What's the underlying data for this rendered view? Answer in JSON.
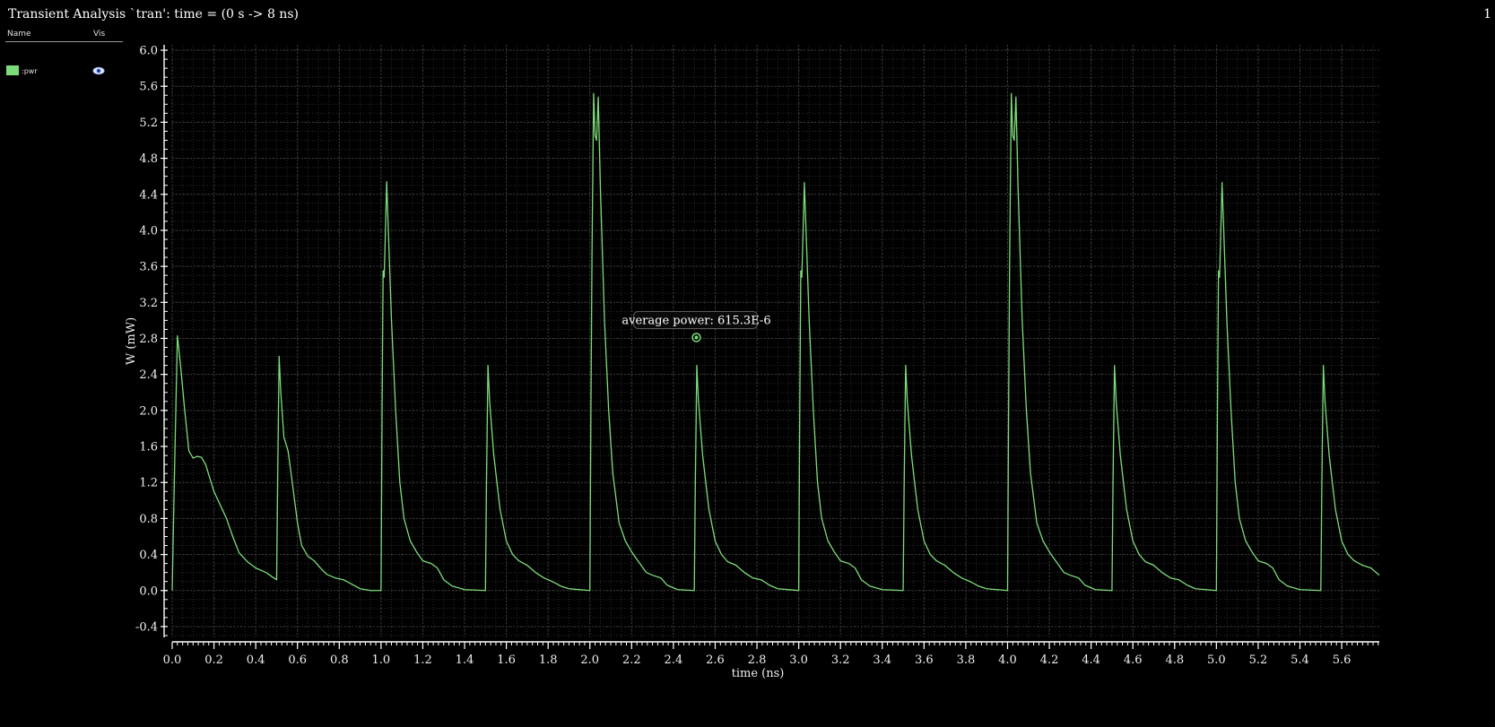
{
  "window": {
    "title": "Transient Analysis `tran': time = (0 s -> 8 ns)",
    "page_number": "1"
  },
  "legend": {
    "name_header": "Name",
    "vis_header": "Vis",
    "items": [
      {
        "label": ":pwr",
        "color": "#7ddc7a",
        "vis_icon": "eye-icon"
      }
    ]
  },
  "colors": {
    "background": "#000000",
    "series": "#7ddc7a",
    "grid": "#3a3a3a",
    "axis": "#ffffff"
  },
  "chart_data": {
    "type": "line",
    "xlabel": "time (ns)",
    "ylabel": "W (mW)",
    "xlim": [
      0,
      5.78
    ],
    "ylim": [
      -0.52,
      6.06
    ],
    "x_ticks": [
      0.0,
      0.2,
      0.4,
      0.6,
      0.8,
      1.0,
      1.2,
      1.4,
      1.6,
      1.8,
      2.0,
      2.2,
      2.4,
      2.6,
      2.8,
      3.0,
      3.2,
      3.4,
      3.6,
      3.8,
      4.0,
      4.2,
      4.4,
      4.6,
      4.8,
      5.0,
      5.2,
      5.4,
      5.6
    ],
    "x_tick_labels": [
      "0.0",
      "0.2",
      "0.4",
      "0.6",
      "0.8",
      "1.0",
      "1.2",
      "1.4",
      "1.6",
      "1.8",
      "2.0",
      "2.2",
      "2.4",
      "2.6",
      "2.8",
      "3.0",
      "3.2",
      "3.4",
      "3.6",
      "3.8",
      "4.0",
      "4.2",
      "4.4",
      "4.6",
      "4.8",
      "5.0",
      "5.2",
      "5.4",
      "5.6"
    ],
    "y_ticks": [
      -0.4,
      0.0,
      0.4,
      0.8,
      1.2,
      1.6,
      2.0,
      2.4,
      2.8,
      3.2,
      3.6,
      4.0,
      4.4,
      4.8,
      5.2,
      5.6,
      6.0
    ],
    "y_tick_labels": [
      "-0.4",
      "0.0",
      "0.4",
      "0.8",
      "1.2",
      "1.6",
      "2.0",
      "2.4",
      "2.8",
      "3.2",
      "3.6",
      "4.0",
      "4.4",
      "4.8",
      "5.2",
      "5.6",
      "6.0"
    ],
    "grid": true,
    "legend_position": "left-panel",
    "series": [
      {
        "name": ":pwr",
        "color": "#7ddc7a",
        "points": [
          [
            0.0,
            0.0
          ],
          [
            0.01,
            1.2
          ],
          [
            0.025,
            2.83
          ],
          [
            0.04,
            2.5
          ],
          [
            0.06,
            2.0
          ],
          [
            0.08,
            1.55
          ],
          [
            0.1,
            1.47
          ],
          [
            0.12,
            1.49
          ],
          [
            0.14,
            1.48
          ],
          [
            0.16,
            1.4
          ],
          [
            0.18,
            1.25
          ],
          [
            0.2,
            1.1
          ],
          [
            0.23,
            0.95
          ],
          [
            0.26,
            0.8
          ],
          [
            0.29,
            0.6
          ],
          [
            0.32,
            0.42
          ],
          [
            0.36,
            0.32
          ],
          [
            0.4,
            0.25
          ],
          [
            0.45,
            0.2
          ],
          [
            0.48,
            0.15
          ],
          [
            0.5,
            0.12
          ],
          [
            0.505,
            1.2
          ],
          [
            0.512,
            2.6
          ],
          [
            0.52,
            2.2
          ],
          [
            0.535,
            1.7
          ],
          [
            0.555,
            1.55
          ],
          [
            0.575,
            1.2
          ],
          [
            0.6,
            0.75
          ],
          [
            0.62,
            0.5
          ],
          [
            0.65,
            0.38
          ],
          [
            0.68,
            0.33
          ],
          [
            0.71,
            0.25
          ],
          [
            0.74,
            0.18
          ],
          [
            0.78,
            0.14
          ],
          [
            0.82,
            0.12
          ],
          [
            0.86,
            0.07
          ],
          [
            0.9,
            0.02
          ],
          [
            0.95,
            0.0
          ],
          [
            1.0,
            0.0
          ],
          [
            1.005,
            2.0
          ],
          [
            1.01,
            3.55
          ],
          [
            1.015,
            3.48
          ],
          [
            1.02,
            3.9
          ],
          [
            1.027,
            4.54
          ],
          [
            1.035,
            4.0
          ],
          [
            1.05,
            3.0
          ],
          [
            1.07,
            2.0
          ],
          [
            1.09,
            1.2
          ],
          [
            1.11,
            0.8
          ],
          [
            1.14,
            0.55
          ],
          [
            1.17,
            0.43
          ],
          [
            1.2,
            0.33
          ],
          [
            1.24,
            0.3
          ],
          [
            1.27,
            0.25
          ],
          [
            1.3,
            0.12
          ],
          [
            1.34,
            0.05
          ],
          [
            1.4,
            0.01
          ],
          [
            1.5,
            0.0
          ],
          [
            1.505,
            1.2
          ],
          [
            1.512,
            2.5
          ],
          [
            1.52,
            2.1
          ],
          [
            1.54,
            1.5
          ],
          [
            1.57,
            0.9
          ],
          [
            1.6,
            0.55
          ],
          [
            1.63,
            0.4
          ],
          [
            1.66,
            0.33
          ],
          [
            1.7,
            0.28
          ],
          [
            1.74,
            0.2
          ],
          [
            1.78,
            0.14
          ],
          [
            1.82,
            0.1
          ],
          [
            1.86,
            0.05
          ],
          [
            1.9,
            0.02
          ],
          [
            2.0,
            0.0
          ],
          [
            2.005,
            2.0
          ],
          [
            2.01,
            3.7
          ],
          [
            2.018,
            5.52
          ],
          [
            2.025,
            5.05
          ],
          [
            2.032,
            5.0
          ],
          [
            2.04,
            5.48
          ],
          [
            2.05,
            4.5
          ],
          [
            2.07,
            3.0
          ],
          [
            2.09,
            2.0
          ],
          [
            2.11,
            1.3
          ],
          [
            2.14,
            0.75
          ],
          [
            2.17,
            0.55
          ],
          [
            2.2,
            0.43
          ],
          [
            2.23,
            0.33
          ],
          [
            2.27,
            0.2
          ],
          [
            2.3,
            0.17
          ],
          [
            2.34,
            0.14
          ],
          [
            2.37,
            0.06
          ],
          [
            2.42,
            0.01
          ],
          [
            2.5,
            0.0
          ],
          [
            2.505,
            1.2
          ],
          [
            2.512,
            2.5
          ],
          [
            2.52,
            2.1
          ],
          [
            2.54,
            1.5
          ],
          [
            2.57,
            0.9
          ],
          [
            2.6,
            0.55
          ],
          [
            2.63,
            0.4
          ],
          [
            2.66,
            0.32
          ],
          [
            2.7,
            0.28
          ],
          [
            2.74,
            0.2
          ],
          [
            2.78,
            0.14
          ],
          [
            2.82,
            0.12
          ],
          [
            2.86,
            0.06
          ],
          [
            2.9,
            0.02
          ],
          [
            3.0,
            0.0
          ],
          [
            3.005,
            2.0
          ],
          [
            3.01,
            3.55
          ],
          [
            3.015,
            3.48
          ],
          [
            3.02,
            3.9
          ],
          [
            3.027,
            4.53
          ],
          [
            3.035,
            4.0
          ],
          [
            3.05,
            3.0
          ],
          [
            3.07,
            2.0
          ],
          [
            3.09,
            1.2
          ],
          [
            3.11,
            0.8
          ],
          [
            3.14,
            0.55
          ],
          [
            3.17,
            0.43
          ],
          [
            3.2,
            0.33
          ],
          [
            3.24,
            0.3
          ],
          [
            3.27,
            0.25
          ],
          [
            3.3,
            0.12
          ],
          [
            3.34,
            0.05
          ],
          [
            3.4,
            0.01
          ],
          [
            3.5,
            0.0
          ],
          [
            3.505,
            1.2
          ],
          [
            3.512,
            2.5
          ],
          [
            3.52,
            2.1
          ],
          [
            3.54,
            1.5
          ],
          [
            3.57,
            0.9
          ],
          [
            3.6,
            0.55
          ],
          [
            3.63,
            0.4
          ],
          [
            3.66,
            0.33
          ],
          [
            3.7,
            0.28
          ],
          [
            3.74,
            0.2
          ],
          [
            3.78,
            0.14
          ],
          [
            3.82,
            0.1
          ],
          [
            3.86,
            0.05
          ],
          [
            3.9,
            0.02
          ],
          [
            4.0,
            0.0
          ],
          [
            4.005,
            2.0
          ],
          [
            4.01,
            3.7
          ],
          [
            4.018,
            5.52
          ],
          [
            4.025,
            5.05
          ],
          [
            4.032,
            5.0
          ],
          [
            4.04,
            5.48
          ],
          [
            4.05,
            4.5
          ],
          [
            4.07,
            3.0
          ],
          [
            4.09,
            2.0
          ],
          [
            4.11,
            1.3
          ],
          [
            4.14,
            0.75
          ],
          [
            4.17,
            0.55
          ],
          [
            4.2,
            0.43
          ],
          [
            4.23,
            0.33
          ],
          [
            4.27,
            0.2
          ],
          [
            4.3,
            0.17
          ],
          [
            4.34,
            0.14
          ],
          [
            4.37,
            0.06
          ],
          [
            4.42,
            0.01
          ],
          [
            4.5,
            0.0
          ],
          [
            4.505,
            1.2
          ],
          [
            4.512,
            2.5
          ],
          [
            4.52,
            2.1
          ],
          [
            4.54,
            1.5
          ],
          [
            4.57,
            0.9
          ],
          [
            4.6,
            0.55
          ],
          [
            4.63,
            0.4
          ],
          [
            4.66,
            0.32
          ],
          [
            4.7,
            0.28
          ],
          [
            4.74,
            0.2
          ],
          [
            4.78,
            0.14
          ],
          [
            4.82,
            0.12
          ],
          [
            4.86,
            0.06
          ],
          [
            4.9,
            0.02
          ],
          [
            5.0,
            0.0
          ],
          [
            5.005,
            2.0
          ],
          [
            5.01,
            3.55
          ],
          [
            5.015,
            3.48
          ],
          [
            5.02,
            3.9
          ],
          [
            5.027,
            4.53
          ],
          [
            5.035,
            4.0
          ],
          [
            5.05,
            3.0
          ],
          [
            5.07,
            2.0
          ],
          [
            5.09,
            1.2
          ],
          [
            5.11,
            0.8
          ],
          [
            5.14,
            0.55
          ],
          [
            5.17,
            0.43
          ],
          [
            5.2,
            0.33
          ],
          [
            5.24,
            0.3
          ],
          [
            5.27,
            0.25
          ],
          [
            5.3,
            0.12
          ],
          [
            5.34,
            0.05
          ],
          [
            5.4,
            0.01
          ],
          [
            5.5,
            0.0
          ],
          [
            5.505,
            1.2
          ],
          [
            5.512,
            2.5
          ],
          [
            5.52,
            2.1
          ],
          [
            5.54,
            1.5
          ],
          [
            5.57,
            0.9
          ],
          [
            5.6,
            0.55
          ],
          [
            5.63,
            0.4
          ],
          [
            5.66,
            0.33
          ],
          [
            5.7,
            0.28
          ],
          [
            5.74,
            0.25
          ],
          [
            5.78,
            0.17
          ]
        ]
      }
    ],
    "annotations": [
      {
        "text": "average power: 615.3E-6",
        "x": 2.51,
        "y": 2.81
      }
    ]
  }
}
